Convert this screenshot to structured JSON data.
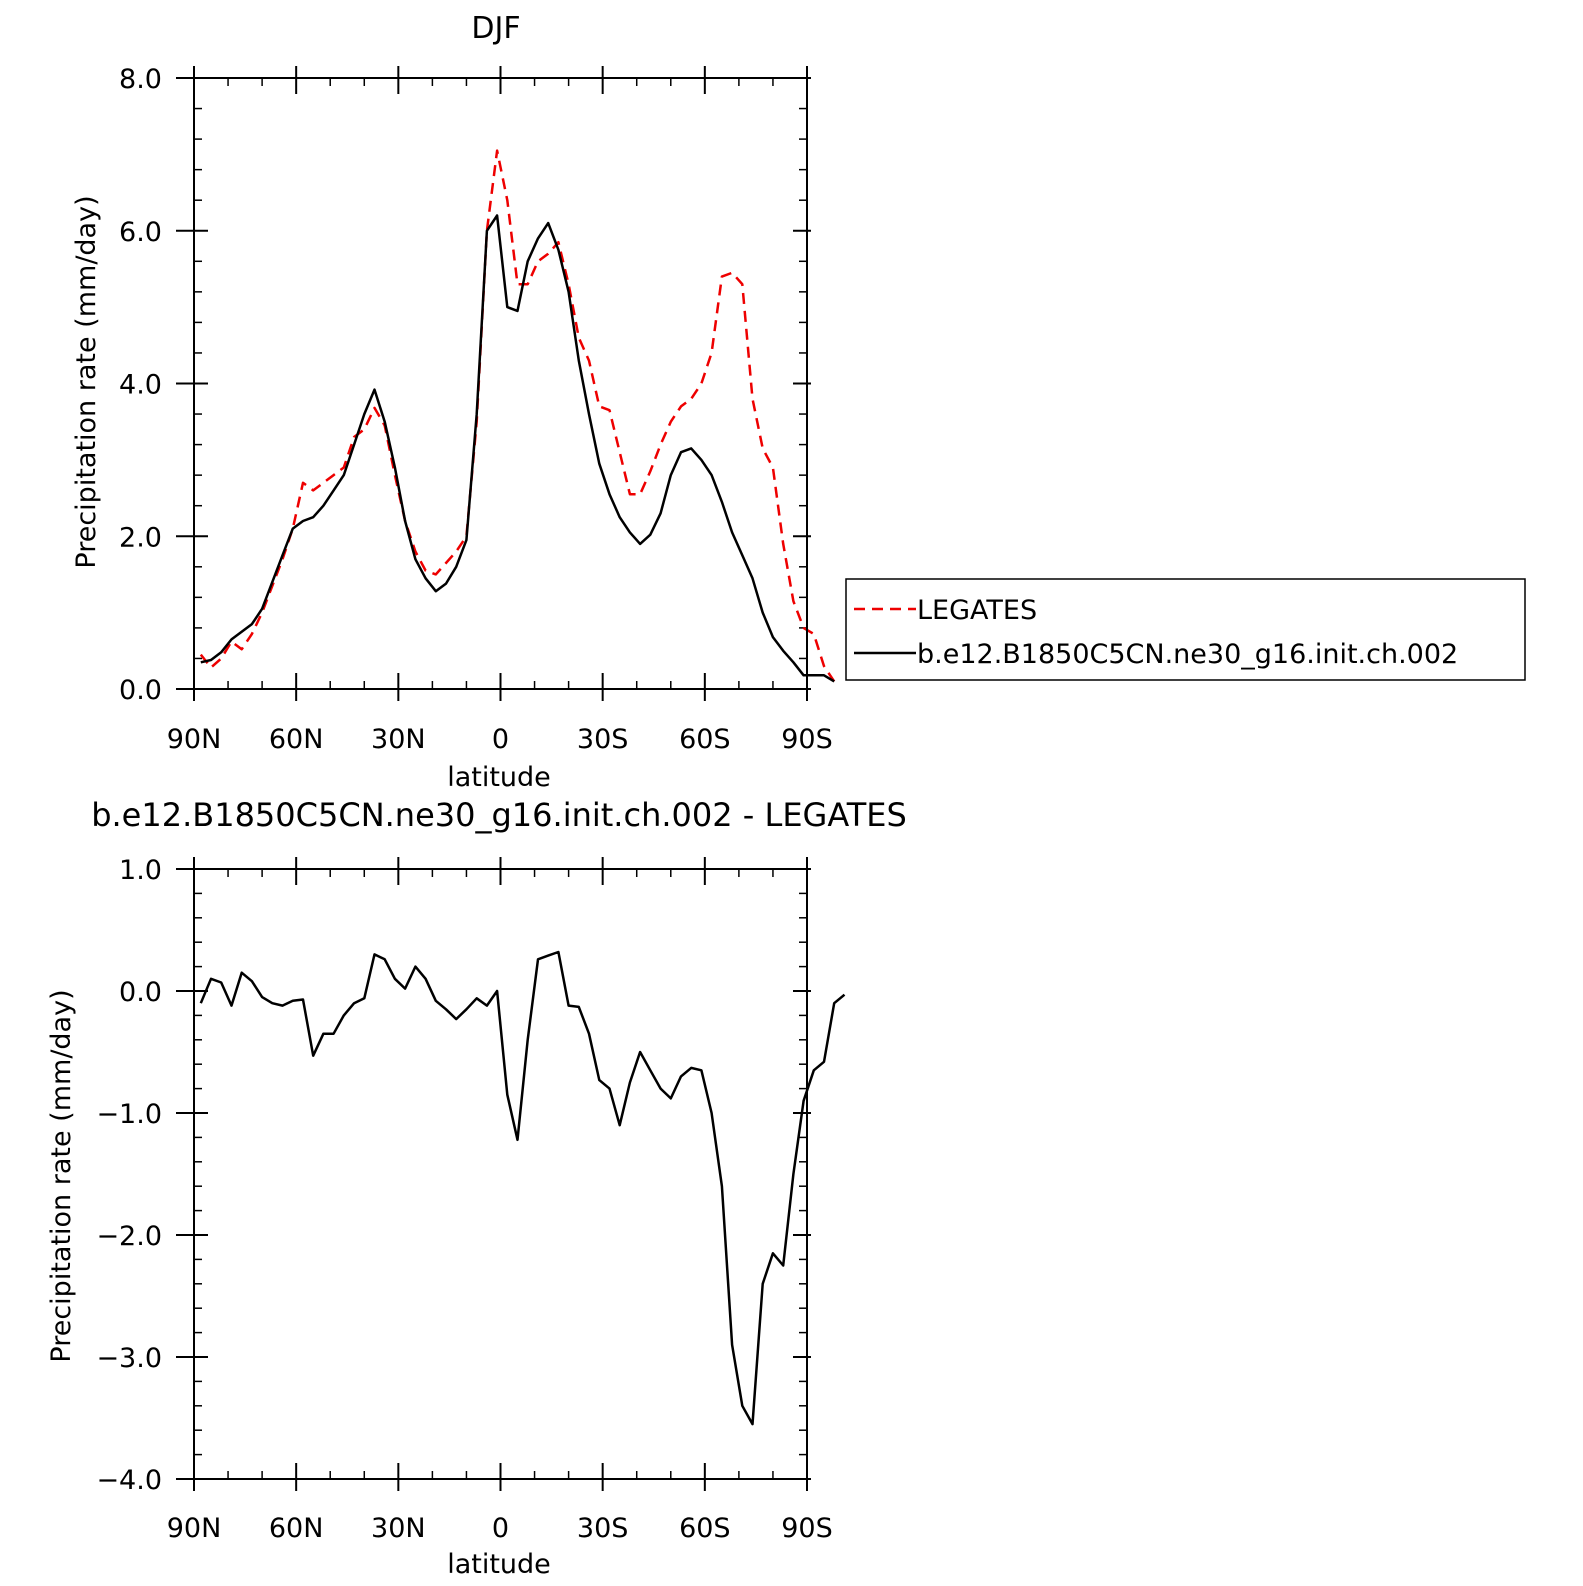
{
  "colors": {
    "model": "#000000",
    "obs": "#ee0000",
    "axis": "#000000",
    "background": "#ffffff"
  },
  "chart_data": [
    {
      "type": "line",
      "title": "DJF",
      "xlabel": "latitude",
      "ylabel": "Precipitation rate (mm/day)",
      "xlim": [
        -90,
        90
      ],
      "ylim": [
        0,
        8
      ],
      "x_ticks": [
        {
          "value": -90,
          "label": "90N"
        },
        {
          "value": -60,
          "label": "60N"
        },
        {
          "value": -30,
          "label": "30N"
        },
        {
          "value": 0,
          "label": "0"
        },
        {
          "value": 30,
          "label": "30S"
        },
        {
          "value": 60,
          "label": "60S"
        },
        {
          "value": 90,
          "label": "90S"
        }
      ],
      "y_ticks": [
        {
          "value": 0,
          "label": "0.0"
        },
        {
          "value": 2,
          "label": "2.0"
        },
        {
          "value": 4,
          "label": "4.0"
        },
        {
          "value": 6,
          "label": "6.0"
        },
        {
          "value": 8,
          "label": "8.0"
        }
      ],
      "grid": false,
      "legend": {
        "position": "right"
      },
      "series": [
        {
          "name": "LEGATES",
          "style": "dashed",
          "color": "#ee0000",
          "points": [
            [
              -88,
              0.45
            ],
            [
              -85,
              0.28
            ],
            [
              -82,
              0.4
            ],
            [
              -79,
              0.62
            ],
            [
              -76,
              0.52
            ],
            [
              -73,
              0.72
            ],
            [
              -70,
              1.0
            ],
            [
              -67,
              1.35
            ],
            [
              -64,
              1.7
            ],
            [
              -61,
              2.1
            ],
            [
              -58,
              2.7
            ],
            [
              -55,
              2.6
            ],
            [
              -52,
              2.7
            ],
            [
              -49,
              2.8
            ],
            [
              -46,
              2.9
            ],
            [
              -43,
              3.3
            ],
            [
              -40,
              3.4
            ],
            [
              -37,
              3.68
            ],
            [
              -34,
              3.45
            ],
            [
              -31,
              2.8
            ],
            [
              -28,
              2.2
            ],
            [
              -25,
              1.8
            ],
            [
              -22,
              1.55
            ],
            [
              -19,
              1.5
            ],
            [
              -16,
              1.65
            ],
            [
              -13,
              1.8
            ],
            [
              -10,
              2.0
            ],
            [
              -7,
              3.5
            ],
            [
              -4,
              6.0
            ],
            [
              -1,
              7.05
            ],
            [
              2,
              6.4
            ],
            [
              5,
              5.3
            ],
            [
              8,
              5.3
            ],
            [
              11,
              5.6
            ],
            [
              14,
              5.7
            ],
            [
              17,
              5.85
            ],
            [
              20,
              5.3
            ],
            [
              23,
              4.6
            ],
            [
              26,
              4.3
            ],
            [
              29,
              3.7
            ],
            [
              32,
              3.65
            ],
            [
              35,
              3.1
            ],
            [
              38,
              2.55
            ],
            [
              41,
              2.55
            ],
            [
              44,
              2.85
            ],
            [
              47,
              3.2
            ],
            [
              50,
              3.5
            ],
            [
              53,
              3.7
            ],
            [
              56,
              3.8
            ],
            [
              59,
              4.0
            ],
            [
              62,
              4.4
            ],
            [
              65,
              5.4
            ],
            [
              68,
              5.45
            ],
            [
              71,
              5.3
            ],
            [
              74,
              3.8
            ],
            [
              77,
              3.15
            ],
            [
              80,
              2.9
            ],
            [
              83,
              1.9
            ],
            [
              86,
              1.15
            ],
            [
              89,
              0.8
            ],
            [
              92,
              0.72
            ],
            [
              95,
              0.3
            ],
            [
              98,
              0.1
            ]
          ]
        },
        {
          "name": "b.e12.B1850C5CN.ne30_g16.init.ch.002",
          "style": "solid",
          "color": "#000000",
          "points": [
            [
              -88,
              0.35
            ],
            [
              -85,
              0.38
            ],
            [
              -82,
              0.48
            ],
            [
              -79,
              0.65
            ],
            [
              -76,
              0.75
            ],
            [
              -73,
              0.85
            ],
            [
              -70,
              1.05
            ],
            [
              -67,
              1.4
            ],
            [
              -64,
              1.75
            ],
            [
              -61,
              2.1
            ],
            [
              -58,
              2.2
            ],
            [
              -55,
              2.25
            ],
            [
              -52,
              2.4
            ],
            [
              -49,
              2.6
            ],
            [
              -46,
              2.8
            ],
            [
              -43,
              3.2
            ],
            [
              -40,
              3.6
            ],
            [
              -37,
              3.92
            ],
            [
              -34,
              3.5
            ],
            [
              -31,
              2.9
            ],
            [
              -28,
              2.2
            ],
            [
              -25,
              1.7
            ],
            [
              -22,
              1.45
            ],
            [
              -19,
              1.28
            ],
            [
              -16,
              1.38
            ],
            [
              -13,
              1.6
            ],
            [
              -10,
              1.95
            ],
            [
              -7,
              3.6
            ],
            [
              -4,
              6.0
            ],
            [
              -1,
              6.2
            ],
            [
              2,
              5.0
            ],
            [
              5,
              4.95
            ],
            [
              8,
              5.6
            ],
            [
              11,
              5.9
            ],
            [
              14,
              6.1
            ],
            [
              17,
              5.75
            ],
            [
              20,
              5.2
            ],
            [
              23,
              4.3
            ],
            [
              26,
              3.6
            ],
            [
              29,
              2.95
            ],
            [
              32,
              2.55
            ],
            [
              35,
              2.25
            ],
            [
              38,
              2.05
            ],
            [
              41,
              1.9
            ],
            [
              44,
              2.02
            ],
            [
              47,
              2.3
            ],
            [
              50,
              2.8
            ],
            [
              53,
              3.1
            ],
            [
              56,
              3.15
            ],
            [
              59,
              3.0
            ],
            [
              62,
              2.8
            ],
            [
              65,
              2.45
            ],
            [
              68,
              2.05
            ],
            [
              71,
              1.75
            ],
            [
              74,
              1.45
            ],
            [
              77,
              1.0
            ],
            [
              80,
              0.68
            ],
            [
              83,
              0.5
            ],
            [
              86,
              0.35
            ],
            [
              89,
              0.18
            ],
            [
              92,
              0.18
            ],
            [
              95,
              0.18
            ],
            [
              98,
              0.1
            ]
          ]
        }
      ]
    },
    {
      "type": "line",
      "title": "b.e12.B1850C5CN.ne30_g16.init.ch.002 - LEGATES",
      "xlabel": "latitude",
      "ylabel": "Precipitation rate (mm/day)",
      "xlim": [
        -90,
        90
      ],
      "ylim": [
        -4,
        1
      ],
      "x_ticks": [
        {
          "value": -90,
          "label": "90N"
        },
        {
          "value": -60,
          "label": "60N"
        },
        {
          "value": -30,
          "label": "30N"
        },
        {
          "value": 0,
          "label": "0"
        },
        {
          "value": 30,
          "label": "30S"
        },
        {
          "value": 60,
          "label": "60S"
        },
        {
          "value": 90,
          "label": "90S"
        }
      ],
      "y_ticks": [
        {
          "value": 1,
          "label": "1.0"
        },
        {
          "value": 0,
          "label": "0.0"
        },
        {
          "value": -1,
          "label": "-1.0"
        },
        {
          "value": -2,
          "label": "-2.0"
        },
        {
          "value": -3,
          "label": "-3.0"
        },
        {
          "value": -4,
          "label": "-4.0"
        }
      ],
      "grid": false,
      "series": [
        {
          "style": "solid",
          "color": "#000000",
          "points": [
            [
              -88,
              -0.1
            ],
            [
              -85,
              0.1
            ],
            [
              -82,
              0.07
            ],
            [
              -79,
              -0.12
            ],
            [
              -76,
              0.15
            ],
            [
              -73,
              0.08
            ],
            [
              -70,
              -0.05
            ],
            [
              -67,
              -0.1
            ],
            [
              -64,
              -0.12
            ],
            [
              -61,
              -0.08
            ],
            [
              -58,
              -0.07
            ],
            [
              -55,
              -0.53
            ],
            [
              -52,
              -0.35
            ],
            [
              -49,
              -0.35
            ],
            [
              -46,
              -0.2
            ],
            [
              -43,
              -0.1
            ],
            [
              -40,
              -0.06
            ],
            [
              -37,
              0.3
            ],
            [
              -34,
              0.26
            ],
            [
              -31,
              0.1
            ],
            [
              -28,
              0.02
            ],
            [
              -25,
              0.2
            ],
            [
              -22,
              0.1
            ],
            [
              -19,
              -0.08
            ],
            [
              -16,
              -0.15
            ],
            [
              -13,
              -0.23
            ],
            [
              -10,
              -0.15
            ],
            [
              -7,
              -0.06
            ],
            [
              -4,
              -0.12
            ],
            [
              -1,
              0.0
            ],
            [
              2,
              -0.85
            ],
            [
              5,
              -1.22
            ],
            [
              8,
              -0.4
            ],
            [
              11,
              0.26
            ],
            [
              14,
              0.29
            ],
            [
              17,
              0.32
            ],
            [
              20,
              -0.12
            ],
            [
              23,
              -0.13
            ],
            [
              26,
              -0.35
            ],
            [
              29,
              -0.73
            ],
            [
              32,
              -0.8
            ],
            [
              35,
              -1.1
            ],
            [
              38,
              -0.75
            ],
            [
              41,
              -0.5
            ],
            [
              44,
              -0.65
            ],
            [
              47,
              -0.8
            ],
            [
              50,
              -0.88
            ],
            [
              53,
              -0.7
            ],
            [
              56,
              -0.63
            ],
            [
              59,
              -0.65
            ],
            [
              62,
              -1.0
            ],
            [
              65,
              -1.6
            ],
            [
              68,
              -2.9
            ],
            [
              71,
              -3.4
            ],
            [
              74,
              -3.55
            ],
            [
              77,
              -2.4
            ],
            [
              80,
              -2.15
            ],
            [
              83,
              -2.25
            ],
            [
              86,
              -1.5
            ],
            [
              89,
              -0.9
            ],
            [
              92,
              -0.65
            ],
            [
              95,
              -0.58
            ],
            [
              98,
              -0.1
            ],
            [
              101,
              -0.03
            ]
          ]
        }
      ]
    }
  ]
}
